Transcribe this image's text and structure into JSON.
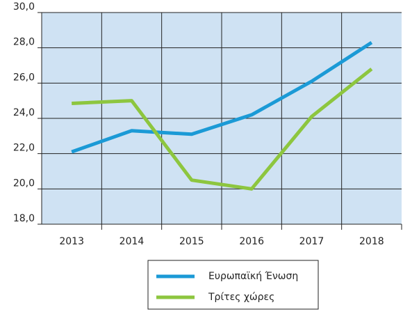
{
  "chart_data": {
    "type": "line",
    "categories": [
      "2013",
      "2014",
      "2015",
      "2016",
      "2017",
      "2018"
    ],
    "series": [
      {
        "name": "Ευρωπαϊκή Ένωση",
        "color": "#1b9ad6",
        "values": [
          22.1,
          23.3,
          23.1,
          24.2,
          26.1,
          28.3
        ]
      },
      {
        "name": "Τρίτες χώρες",
        "color": "#8dc63f",
        "values": [
          24.85,
          25.0,
          20.5,
          20.0,
          24.1,
          26.8
        ]
      }
    ],
    "ylim": [
      18,
      30
    ],
    "yticks": [
      {
        "value": 18,
        "label": "18,0"
      },
      {
        "value": 20,
        "label": "20,0"
      },
      {
        "value": 22,
        "label": "22,0"
      },
      {
        "value": 24,
        "label": "24,0"
      },
      {
        "value": 26,
        "label": "26,0"
      },
      {
        "value": 28,
        "label": "28,0"
      },
      {
        "value": 30,
        "label": "30,0"
      }
    ],
    "grid": true,
    "legend": "bottom"
  }
}
